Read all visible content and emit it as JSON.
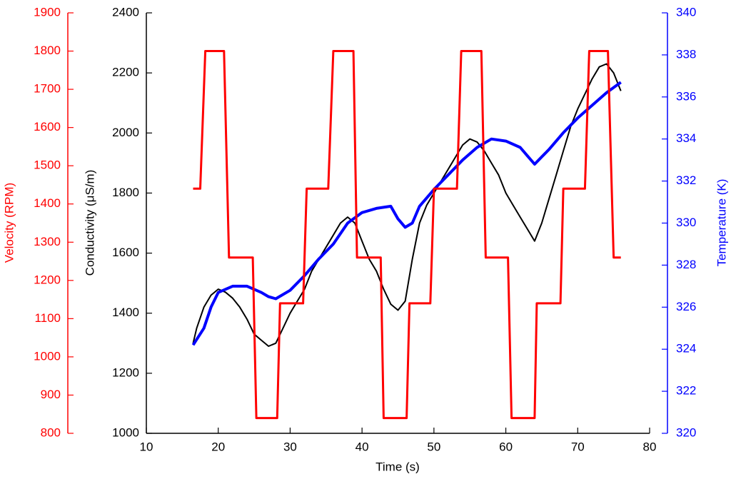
{
  "chart_data": {
    "type": "line",
    "xlabel": "Time (s)",
    "ylabel": "Conductivity (μS/m)",
    "y2label": "Temperature (K)",
    "y3label": "Velocity (RPM)",
    "xlim": [
      10,
      80
    ],
    "xticks": [
      10,
      20,
      30,
      40,
      50,
      60,
      70,
      80
    ],
    "ylim": [
      1000,
      2400
    ],
    "yticks": [
      1000,
      1200,
      1400,
      1600,
      1800,
      2000,
      2200,
      2400
    ],
    "ycolor": "#000000",
    "y2lim": [
      320,
      340
    ],
    "y2ticks": [
      320,
      322,
      324,
      326,
      328,
      330,
      332,
      334,
      336,
      338,
      340
    ],
    "y2color": "#0000ff",
    "y3lim": [
      800,
      1900
    ],
    "y3ticks": [
      800,
      900,
      1000,
      1100,
      1200,
      1300,
      1400,
      1500,
      1600,
      1700,
      1800,
      1900
    ],
    "y3color": "#ff0000",
    "series": [
      {
        "axis": "y",
        "color": "#000000",
        "x": [
          16.5,
          17,
          18,
          19,
          20,
          21,
          22,
          23,
          24,
          25,
          26,
          27,
          28,
          29,
          30,
          31,
          32,
          33,
          34,
          35,
          36,
          37,
          38,
          39,
          40,
          41,
          42,
          43,
          44,
          45,
          46,
          47,
          48,
          49,
          50,
          51,
          52,
          53,
          54,
          55,
          56,
          57,
          58,
          59,
          60,
          61,
          62,
          63,
          64,
          65,
          66,
          67,
          68,
          69,
          70,
          71,
          72,
          73,
          74,
          75,
          76
        ],
        "values": [
          1300,
          1350,
          1420,
          1460,
          1480,
          1470,
          1450,
          1420,
          1380,
          1330,
          1310,
          1290,
          1300,
          1350,
          1400,
          1440,
          1480,
          1540,
          1580,
          1620,
          1660,
          1700,
          1720,
          1700,
          1640,
          1580,
          1540,
          1480,
          1430,
          1410,
          1440,
          1580,
          1700,
          1760,
          1800,
          1840,
          1880,
          1920,
          1960,
          1980,
          1970,
          1940,
          1900,
          1860,
          1800,
          1760,
          1720,
          1680,
          1640,
          1700,
          1780,
          1860,
          1940,
          2020,
          2080,
          2130,
          2180,
          2220,
          2230,
          2200,
          2140
        ]
      },
      {
        "axis": "y2",
        "color": "#0000ff",
        "x": [
          16.5,
          18,
          19,
          20,
          22,
          24,
          26,
          27,
          28,
          30,
          32,
          34,
          36,
          38,
          40,
          42,
          44,
          45,
          46,
          47,
          48,
          50,
          52,
          54,
          56,
          58,
          60,
          62,
          63,
          64,
          66,
          68,
          70,
          72,
          74,
          76
        ],
        "values": [
          324.2,
          325,
          326,
          326.7,
          327,
          327,
          326.7,
          326.5,
          326.4,
          326.8,
          327.5,
          328.3,
          329,
          330,
          330.5,
          330.7,
          330.8,
          330.2,
          329.8,
          330,
          330.8,
          331.6,
          332.3,
          333,
          333.6,
          334,
          333.9,
          333.6,
          333.2,
          332.8,
          333.5,
          334.3,
          335,
          335.6,
          336.2,
          336.7
        ]
      },
      {
        "axis": "y3",
        "color": "#ff0000",
        "x": [
          16.5,
          17.5,
          18.2,
          20.8,
          21.5,
          24.8,
          25.3,
          28.2,
          28.6,
          31.8,
          32.3,
          35.3,
          36,
          38.8,
          39.3,
          42.6,
          43,
          46.2,
          46.6,
          49.5,
          50,
          53.2,
          53.8,
          56.6,
          57.2,
          60.3,
          60.8,
          64,
          64.3,
          67.6,
          68,
          71,
          71.6,
          74.2,
          75,
          76
        ],
        "values": [
          1440,
          1440,
          1800,
          1800,
          1260,
          1260,
          840,
          840,
          1140,
          1140,
          1440,
          1440,
          1800,
          1800,
          1260,
          1260,
          840,
          840,
          1140,
          1140,
          1440,
          1440,
          1800,
          1800,
          1260,
          1260,
          840,
          840,
          1140,
          1140,
          1440,
          1440,
          1800,
          1800,
          1260,
          1260
        ]
      }
    ]
  }
}
